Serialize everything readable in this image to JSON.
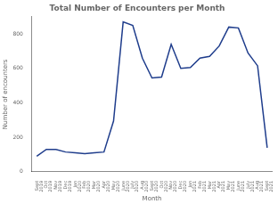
{
  "chart_data": {
    "type": "line",
    "title": "Total Number of Encounters per Month",
    "xlabel": "Month",
    "ylabel": "Number of encounters",
    "categories": [
      "Sept\n2019",
      "Oct\n2019",
      "Nov\n2019",
      "Dec\n2019",
      "Jan\n2020",
      "Feb\n2020",
      "Mar\n2020",
      "Apr\n2020",
      "May\n2020",
      "June\n2020",
      "July\n2020",
      "Aug\n2020",
      "Sept\n2020",
      "Oct\n2020",
      "Nov\n2020",
      "Dec\n2020",
      "Jan\n2021",
      "Feb\n2021",
      "Mar\n2021",
      "Apr\n2021",
      "May\n2021",
      "June\n2021",
      "July\n2021",
      "Aug\n2021",
      "Sept\n2021"
    ],
    "values": [
      90,
      130,
      130,
      115,
      110,
      105,
      110,
      115,
      295,
      870,
      850,
      660,
      545,
      550,
      740,
      600,
      605,
      660,
      670,
      730,
      840,
      835,
      690,
      615,
      140
    ],
    "color": "#1f3d8c",
    "ylim": [
      0,
      900
    ],
    "yticks": [
      0,
      200,
      400,
      600,
      800
    ],
    "grid": false
  }
}
